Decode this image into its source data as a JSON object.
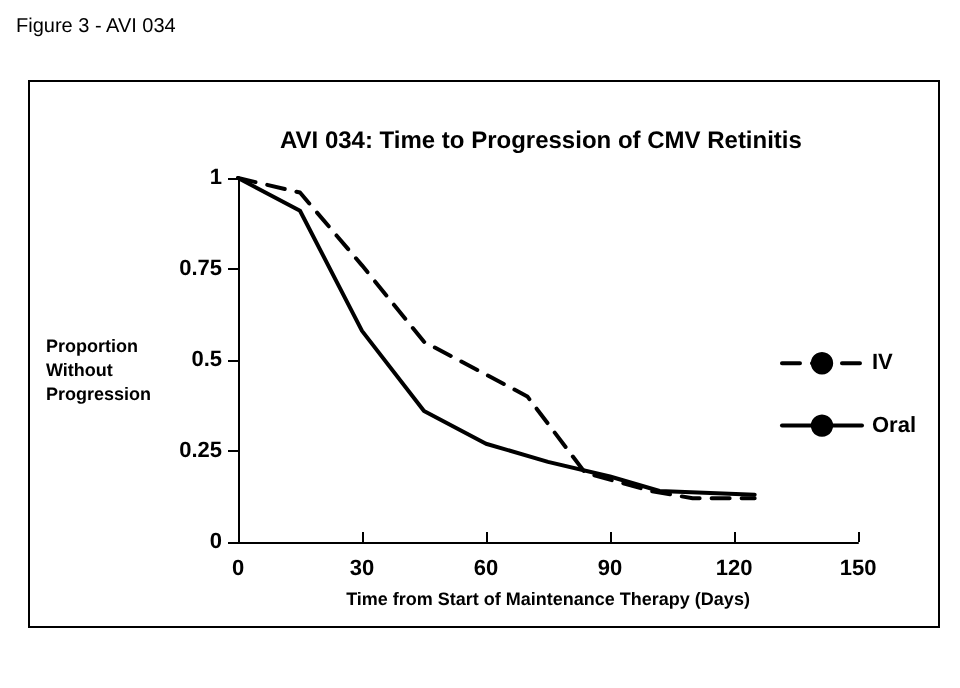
{
  "chart_data": {
    "type": "line",
    "title": "AVI 034: Time to Progression of CMV Retinitis",
    "annotations": [
      "Figure 3 - AVI 034"
    ],
    "xlabel": "Time from Start of Maintenance Therapy (Days)",
    "ylabel": "Proportion\nWithout\nProgression",
    "series": [
      {
        "name": "IV",
        "color": "#000000",
        "line_style": "dashed",
        "x": [
          0,
          15,
          30,
          45,
          60,
          70,
          84,
          100,
          110,
          125
        ],
        "values": [
          1,
          0.96,
          0.76,
          0.55,
          0.46,
          0.4,
          0.19,
          0.14,
          0.12,
          0.12
        ]
      },
      {
        "name": "Oral",
        "color": "#000000",
        "line_style": "solid",
        "x": [
          0,
          15,
          30,
          45,
          60,
          75,
          90,
          102,
          125
        ],
        "values": [
          1,
          0.91,
          0.58,
          0.36,
          0.27,
          0.22,
          0.18,
          0.14,
          0.13
        ]
      }
    ],
    "xlim": [
      0,
      150
    ],
    "xticks": [
      0,
      30,
      60,
      90,
      120,
      150
    ],
    "ylim": [
      0,
      1
    ],
    "yticks": [
      0,
      0.25,
      0.5,
      0.75,
      1
    ],
    "grid": false,
    "legend": "right",
    "marker": "none"
  }
}
